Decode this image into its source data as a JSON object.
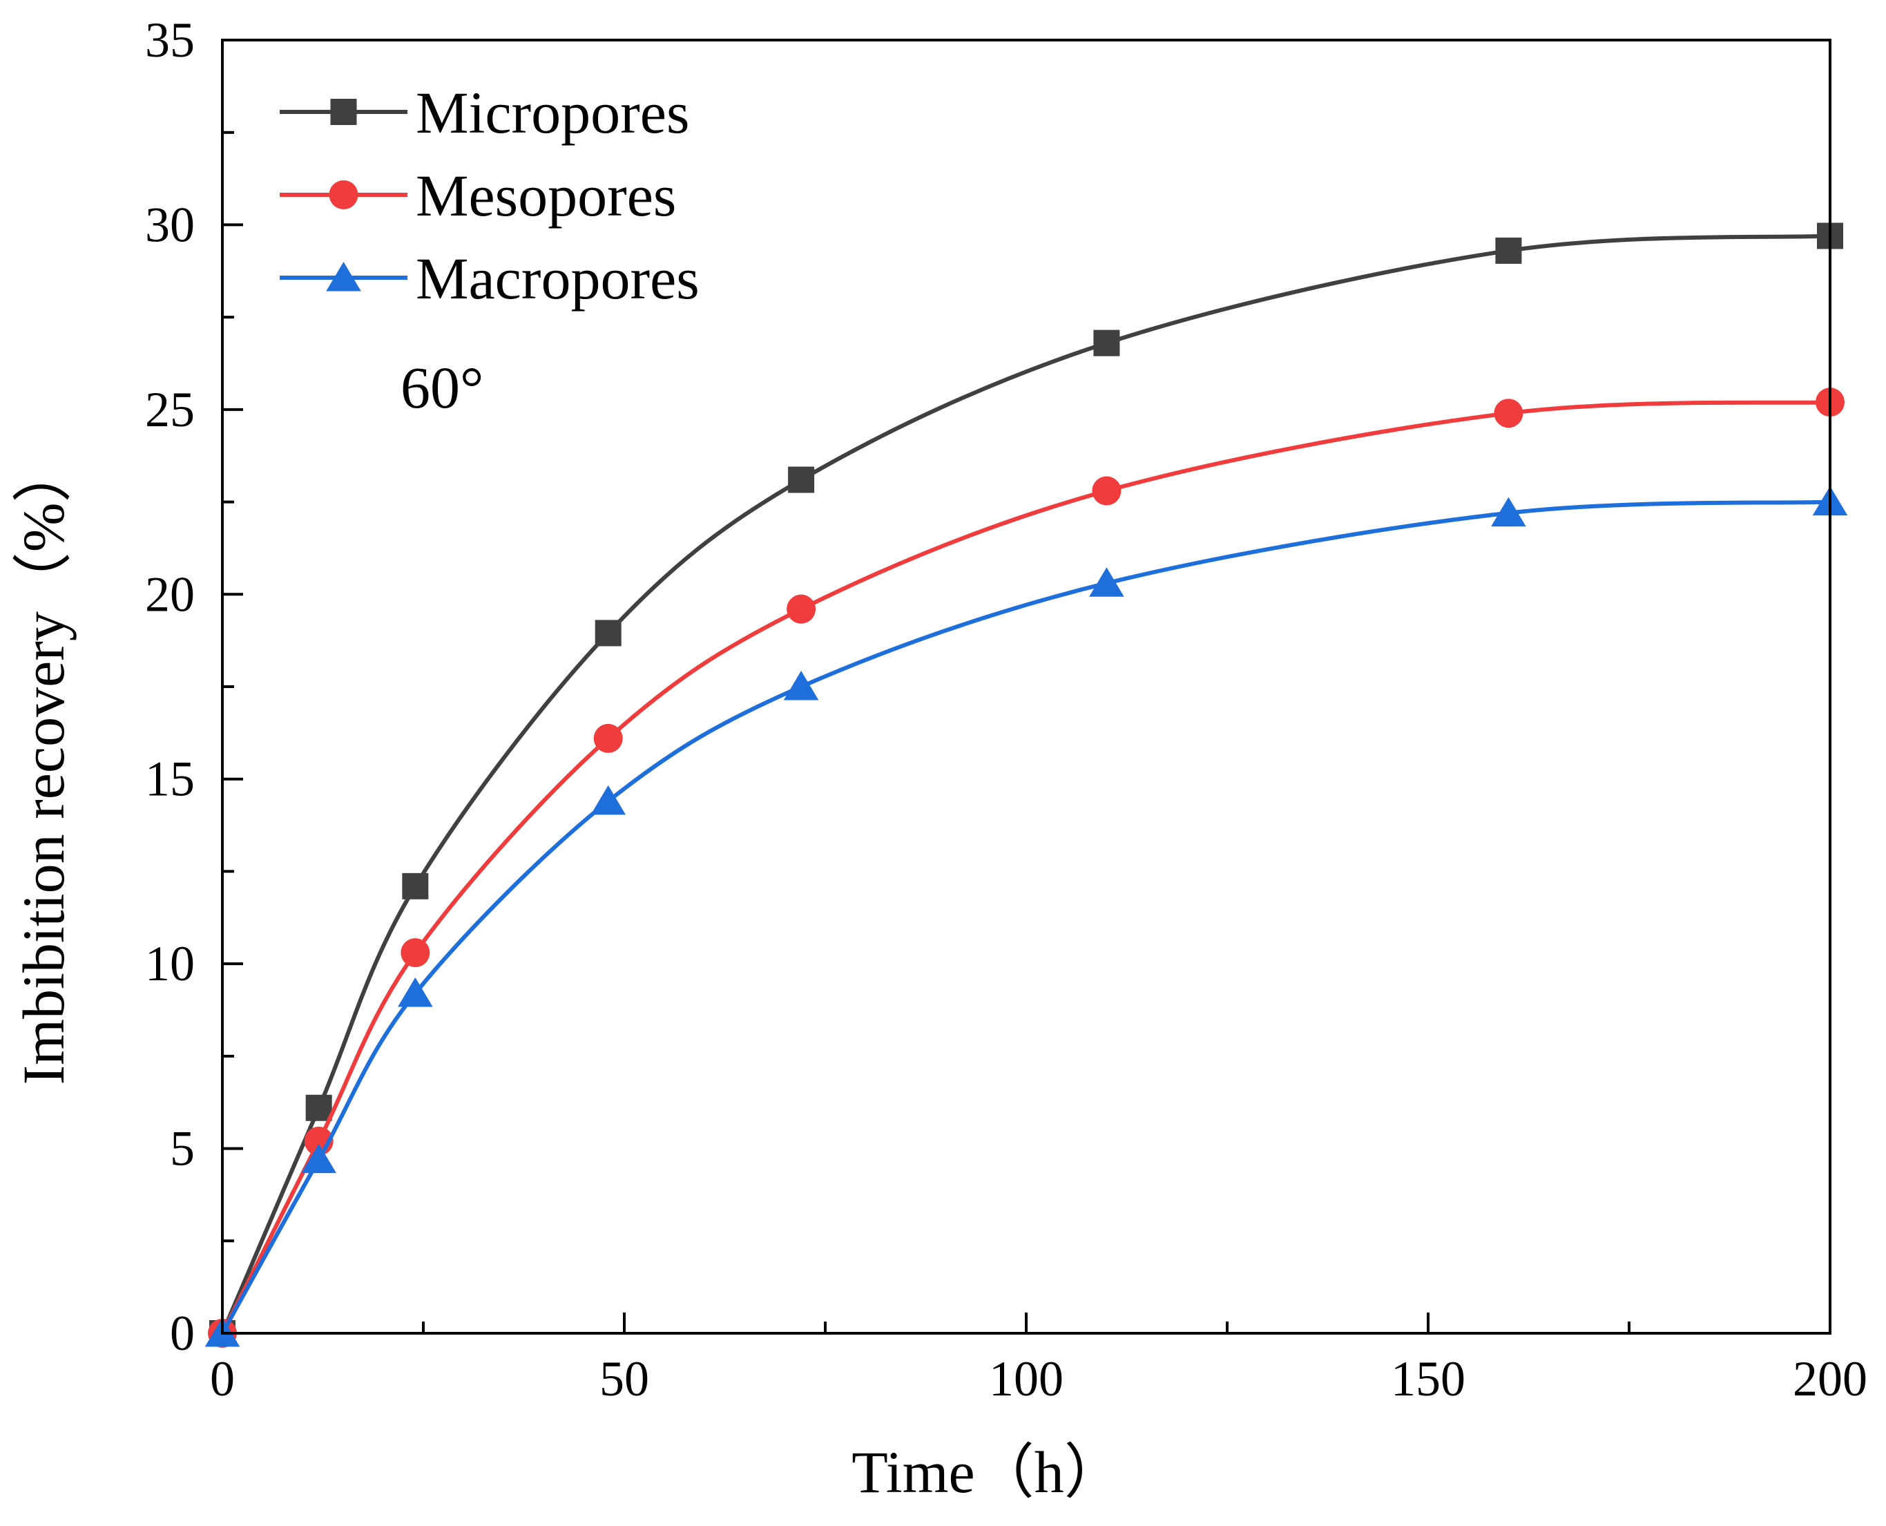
{
  "chart_data": {
    "type": "line",
    "title": "",
    "xlabel": "Time（h）",
    "ylabel": "Imbibition recovery（%）",
    "xlim": [
      0,
      200
    ],
    "ylim": [
      0,
      35
    ],
    "x_ticks": [
      0,
      50,
      100,
      150,
      200
    ],
    "y_ticks": [
      0,
      5,
      10,
      15,
      20,
      25,
      30,
      35
    ],
    "x_tick_labels": [
      "0",
      "50",
      "100",
      "150",
      "200"
    ],
    "y_tick_labels": [
      "0",
      "5",
      "10",
      "15",
      "20",
      "25",
      "30",
      "35"
    ],
    "grid": false,
    "legend_position": "top-left",
    "annotation": "60°",
    "x": [
      0,
      12,
      24,
      48,
      72,
      110,
      160,
      200
    ],
    "series": [
      {
        "name": "Micropores",
        "color": "#404040",
        "marker": "square",
        "values": [
          0,
          6.1,
          12.1,
          18.95,
          23.1,
          26.8,
          29.3,
          29.7
        ]
      },
      {
        "name": "Mesopores",
        "color": "#f03c3c",
        "marker": "circle",
        "values": [
          0,
          5.2,
          10.3,
          16.1,
          19.6,
          22.8,
          24.9,
          25.2
        ]
      },
      {
        "name": "Macropores",
        "color": "#1e6fdc",
        "marker": "triangle",
        "values": [
          0,
          4.7,
          9.2,
          14.4,
          17.5,
          20.3,
          22.2,
          22.5
        ]
      }
    ]
  }
}
